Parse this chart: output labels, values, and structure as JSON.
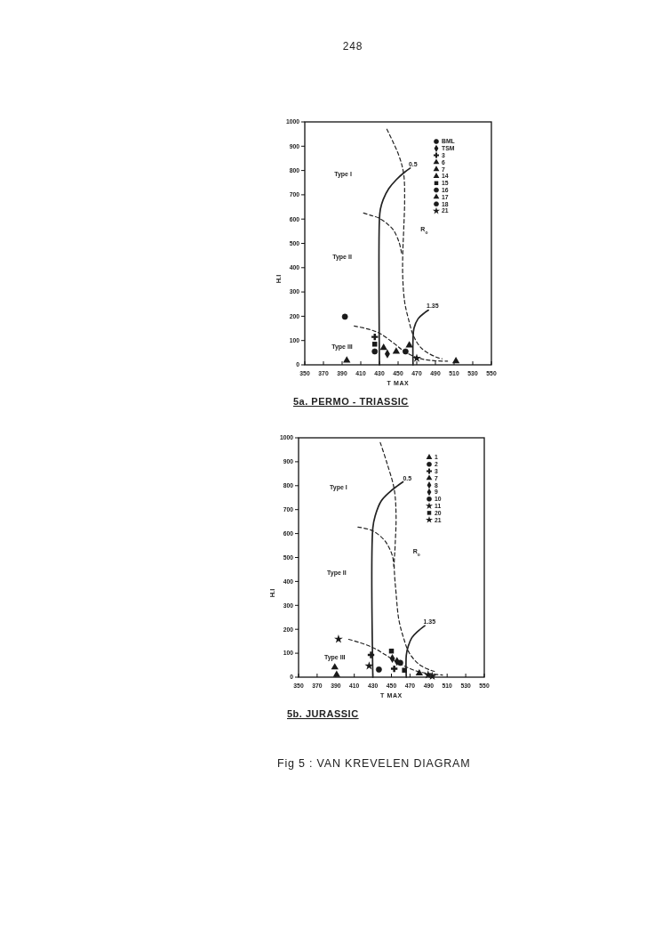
{
  "chart_data": [
    {
      "type": "scatter",
      "title": "5a. PERMO - TRIASSIC",
      "xlabel": "T MAX",
      "ylabel": "H.I",
      "xlim": [
        350,
        550
      ],
      "ylim": [
        0,
        1000
      ],
      "xticks": [
        350,
        370,
        390,
        410,
        430,
        450,
        470,
        490,
        510,
        530,
        550
      ],
      "yticks": [
        0,
        100,
        200,
        300,
        400,
        500,
        600,
        700,
        800,
        900,
        1000
      ],
      "legend": "top right",
      "series": [
        {
          "type": "line",
          "line_style": "solid",
          "color": "#222222",
          "x": [
            430,
            430,
            431,
            434,
            440,
            448,
            457,
            463
          ],
          "values": [
            0,
            600,
            640,
            680,
            725,
            762,
            793,
            810
          ]
        },
        {
          "type": "line",
          "line_style": "solid",
          "color": "#222222",
          "x": [
            466,
            466,
            467,
            471.5,
            478,
            482.5
          ],
          "values": [
            0,
            105,
            150,
            190,
            213,
            225
          ]
        },
        {
          "type": "line",
          "line_style": "dashed",
          "color": "#222222",
          "x": [
            438,
            451,
            456,
            457,
            456,
            455,
            455,
            457,
            461,
            467,
            476,
            492,
            497
          ],
          "values": [
            970,
            860,
            785,
            675,
            555,
            455,
            360,
            260,
            190,
            115,
            65,
            30,
            25
          ]
        },
        {
          "type": "line",
          "line_style": "dashed",
          "color": "#222222",
          "x": [
            413,
            421,
            429,
            438.5,
            445,
            451,
            454
          ],
          "values": [
            625,
            615,
            605,
            580,
            555,
            505,
            455
          ]
        },
        {
          "type": "line",
          "line_style": "dashed",
          "color": "#222222",
          "x": [
            403,
            420,
            431,
            445,
            457,
            470,
            486,
            503
          ],
          "values": [
            160,
            145,
            128,
            90,
            55,
            30,
            18,
            15
          ]
        },
        {
          "name": "BML",
          "marker": "circle",
          "color": "#1a1a1a",
          "x": [
            393
          ],
          "values": [
            198
          ]
        },
        {
          "name": "TSM",
          "marker": "diamond",
          "color": "#1a1a1a",
          "x": [
            438.5
          ],
          "values": [
            45
          ]
        },
        {
          "name": "3",
          "marker": "cross",
          "color": "#1a1a1a",
          "x": [
            425
          ],
          "values": [
            115
          ]
        },
        {
          "name": "6",
          "marker": "triangle",
          "color": "#1a1a1a",
          "x": [
            462
          ],
          "values": [
            80
          ]
        },
        {
          "name": "7",
          "marker": "triangle",
          "color": "#1a1a1a",
          "x": [
            434.5
          ],
          "values": [
            70
          ]
        },
        {
          "name": "14",
          "marker": "triangle",
          "color": "#1a1a1a",
          "x": [
            395,
            512
          ],
          "values": [
            18,
            15
          ]
        },
        {
          "name": "15",
          "marker": "square",
          "color": "#1a1a1a",
          "x": [
            425
          ],
          "values": [
            85
          ]
        },
        {
          "name": "16",
          "marker": "circle",
          "color": "#1a1a1a",
          "x": [
            425
          ],
          "values": [
            55
          ]
        },
        {
          "name": "17",
          "marker": "triangle",
          "color": "#1a1a1a",
          "x": [
            448
          ],
          "values": [
            55
          ]
        },
        {
          "name": "18",
          "marker": "circle",
          "color": "#1a1a1a",
          "x": [
            458
          ],
          "values": [
            55
          ]
        },
        {
          "name": "21",
          "marker": "star",
          "color": "#1a1a1a",
          "x": [
            470
          ],
          "values": [
            27
          ]
        }
      ],
      "annotations": [
        "0.5",
        "1.35",
        "Type I",
        "Type II",
        "Type III",
        "R$_{o}$",
        "248"
      ]
    },
    {
      "type": "scatter",
      "title": "5b. JURASSIC",
      "xlabel": "T MAX",
      "ylabel": "H.I",
      "xlim": [
        350,
        550
      ],
      "ylim": [
        0,
        1000
      ],
      "xticks": [
        350,
        370,
        390,
        410,
        430,
        450,
        470,
        490,
        510,
        530,
        550
      ],
      "yticks": [
        0,
        100,
        200,
        300,
        400,
        500,
        600,
        700,
        800,
        900,
        1000
      ],
      "legend": "top right",
      "series": [
        {
          "type": "line",
          "line_style": "solid",
          "color": "#222222",
          "x": [
            430,
            430,
            432.5,
            439,
            448,
            456,
            462.5
          ],
          "values": [
            0,
            624,
            674,
            736,
            773,
            798,
            816
          ]
        },
        {
          "type": "line",
          "line_style": "solid",
          "color": "#222222",
          "x": [
            466,
            466,
            468,
            472,
            478,
            486
          ],
          "values": [
            0,
            91,
            128,
            165,
            190,
            215
          ]
        },
        {
          "type": "line",
          "line_style": "dashed",
          "color": "#222222",
          "x": [
            438,
            445,
            453,
            455,
            454,
            453,
            455,
            458,
            463,
            469,
            480,
            493,
            499
          ],
          "values": [
            980,
            897,
            785,
            674,
            550,
            463,
            351,
            240,
            165,
            103,
            53,
            28,
            22
          ]
        },
        {
          "type": "line",
          "line_style": "dashed",
          "color": "#222222",
          "x": [
            414,
            429.5,
            442,
            448,
            451.5,
            452.5
          ],
          "values": [
            627,
            612,
            574,
            537,
            500,
            463
          ]
        },
        {
          "type": "line",
          "line_style": "dashed",
          "color": "#222222",
          "x": [
            404,
            417,
            431,
            442,
            455,
            467,
            480,
            493,
            505
          ],
          "values": [
            158,
            143,
            122,
            97,
            66,
            41,
            22,
            14,
            9
          ]
        },
        {
          "name": "1",
          "marker": "triangle",
          "color": "#1a1a1a",
          "x": [
            391,
            480
          ],
          "values": [
            10,
            16
          ]
        },
        {
          "name": "2",
          "marker": "circle",
          "color": "#1a1a1a",
          "x": [
            436.5
          ],
          "values": [
            32
          ]
        },
        {
          "name": "3",
          "marker": "cross",
          "color": "#1a1a1a",
          "x": [
            428,
            453
          ],
          "values": [
            93,
            35
          ]
        },
        {
          "name": "7",
          "marker": "triangle",
          "color": "#1a1a1a",
          "x": [
            389
          ],
          "values": [
            41
          ]
        },
        {
          "name": "8",
          "marker": "diamond",
          "color": "#1a1a1a",
          "x": [
            451
          ],
          "values": [
            78
          ]
        },
        {
          "name": "9",
          "marker": "diamond",
          "color": "#1a1a1a",
          "x": [
            456
          ],
          "values": [
            66
          ]
        },
        {
          "name": "10",
          "marker": "circle",
          "color": "#1a1a1a",
          "x": [
            459.5
          ],
          "values": [
            60
          ]
        },
        {
          "name": "11",
          "marker": "star",
          "color": "#1a1a1a",
          "x": [
            393,
            426
          ],
          "values": [
            159,
            47
          ]
        },
        {
          "name": "20",
          "marker": "square",
          "color": "#1a1a1a",
          "x": [
            450,
            464
          ],
          "values": [
            109,
            29
          ]
        },
        {
          "name": "21",
          "marker": "star",
          "color": "#1a1a1a",
          "x": [
            489.5,
            494
          ],
          "values": [
            10,
            4
          ]
        }
      ],
      "annotations": [
        "0.5",
        "1.35",
        "Type I",
        "Type II",
        "Type III",
        "R$_{o}$",
        "Fig 5 : VAN KREVELEN DIAGRAM"
      ]
    }
  ]
}
